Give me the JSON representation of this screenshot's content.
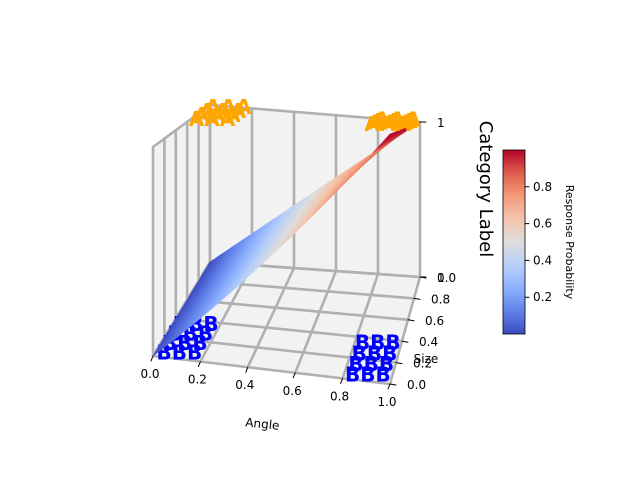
{
  "chart_data": {
    "type": "surface3d",
    "x_axis": {
      "label": "Angle",
      "range": [
        0,
        1
      ],
      "ticks": [
        "0.0",
        "0.2",
        "0.4",
        "0.6",
        "0.8",
        "1.0"
      ]
    },
    "y_axis": {
      "label": "Size",
      "range": [
        0,
        1
      ],
      "ticks": [
        "0.0",
        "0.2",
        "0.4",
        "0.6",
        "0.8",
        "1.0"
      ]
    },
    "z_axis": {
      "label": "Category Label",
      "range": [
        0,
        1
      ],
      "ticks": [
        "0",
        "1"
      ]
    },
    "surface": {
      "description": "z = x",
      "x_range": [
        0,
        1
      ],
      "y_range": [
        0,
        1
      ]
    },
    "colormap": "coolwarm",
    "colorbar": {
      "label": "Response Probability",
      "range": [
        0.0,
        1.0
      ],
      "ticks": [
        "0.2",
        "0.4",
        "0.6",
        "0.8"
      ]
    },
    "marker_groups": [
      {
        "text": "AAA",
        "color": "#FFA500",
        "z": 1,
        "points": [
          [
            0.1,
            0.65
          ],
          [
            0.1,
            0.75
          ],
          [
            0.1,
            0.85
          ],
          [
            0.1,
            0.95
          ],
          [
            0.9,
            0.65
          ],
          [
            0.9,
            0.75
          ],
          [
            0.9,
            0.85
          ],
          [
            0.9,
            0.95
          ]
        ]
      },
      {
        "text": "BBB",
        "color": "#0000FF",
        "z": 0,
        "points": [
          [
            0.1,
            0.05
          ],
          [
            0.1,
            0.15
          ],
          [
            0.1,
            0.25
          ],
          [
            0.1,
            0.35
          ],
          [
            0.9,
            0.05
          ],
          [
            0.9,
            0.15
          ],
          [
            0.9,
            0.25
          ],
          [
            0.9,
            0.35
          ]
        ]
      }
    ],
    "grid": true,
    "colors": {
      "pane": "#f2f2f2",
      "grid": "#b0b0b0"
    }
  }
}
